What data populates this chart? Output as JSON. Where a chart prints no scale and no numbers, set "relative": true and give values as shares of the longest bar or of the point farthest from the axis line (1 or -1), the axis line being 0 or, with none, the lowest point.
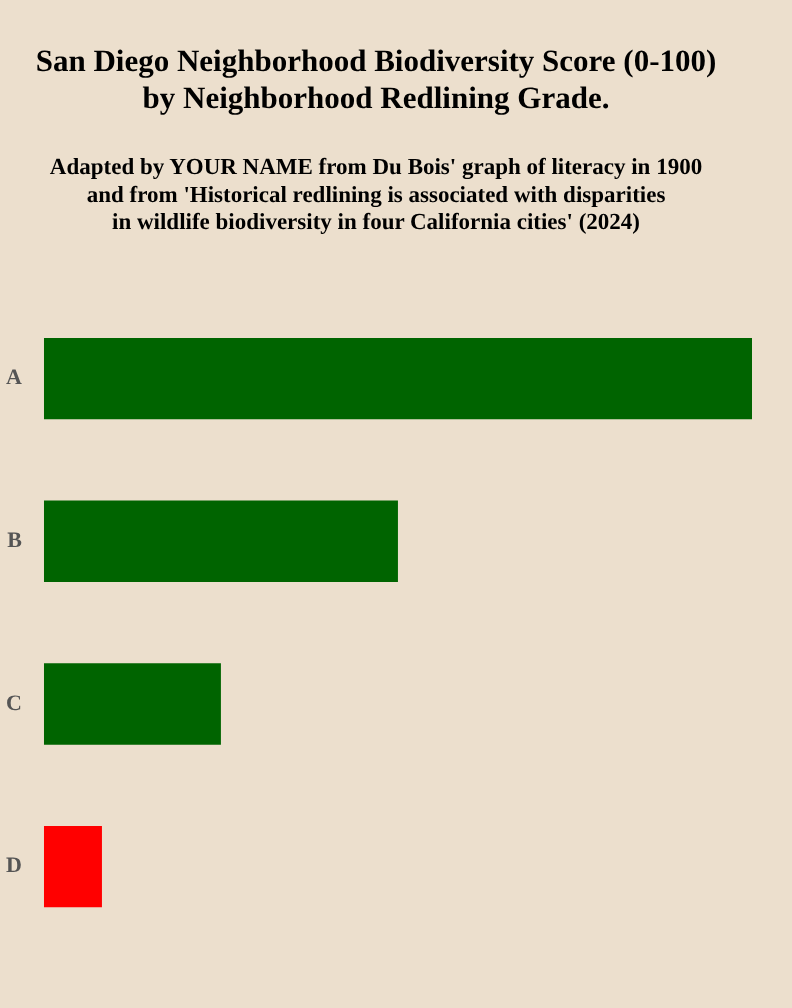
{
  "chart_data": {
    "type": "bar",
    "orientation": "horizontal",
    "relative": true,
    "title": "San Diego Neighborhood Biodiversity Score (0-100)\nby Neighborhood Redlining Grade.",
    "subtitle": "Adapted by YOUR NAME from Du Bois' graph of literacy in 1900\nand from 'Historical redlining is associated with disparities\nin wildlife biodiversity in four California cities' (2024)",
    "categories": [
      "A",
      "B",
      "C",
      "D"
    ],
    "values": [
      1,
      0.5,
      0.25,
      0.082
    ],
    "colors": [
      "#006400",
      "#006400",
      "#006400",
      "#ff0000"
    ],
    "legend": false
  }
}
